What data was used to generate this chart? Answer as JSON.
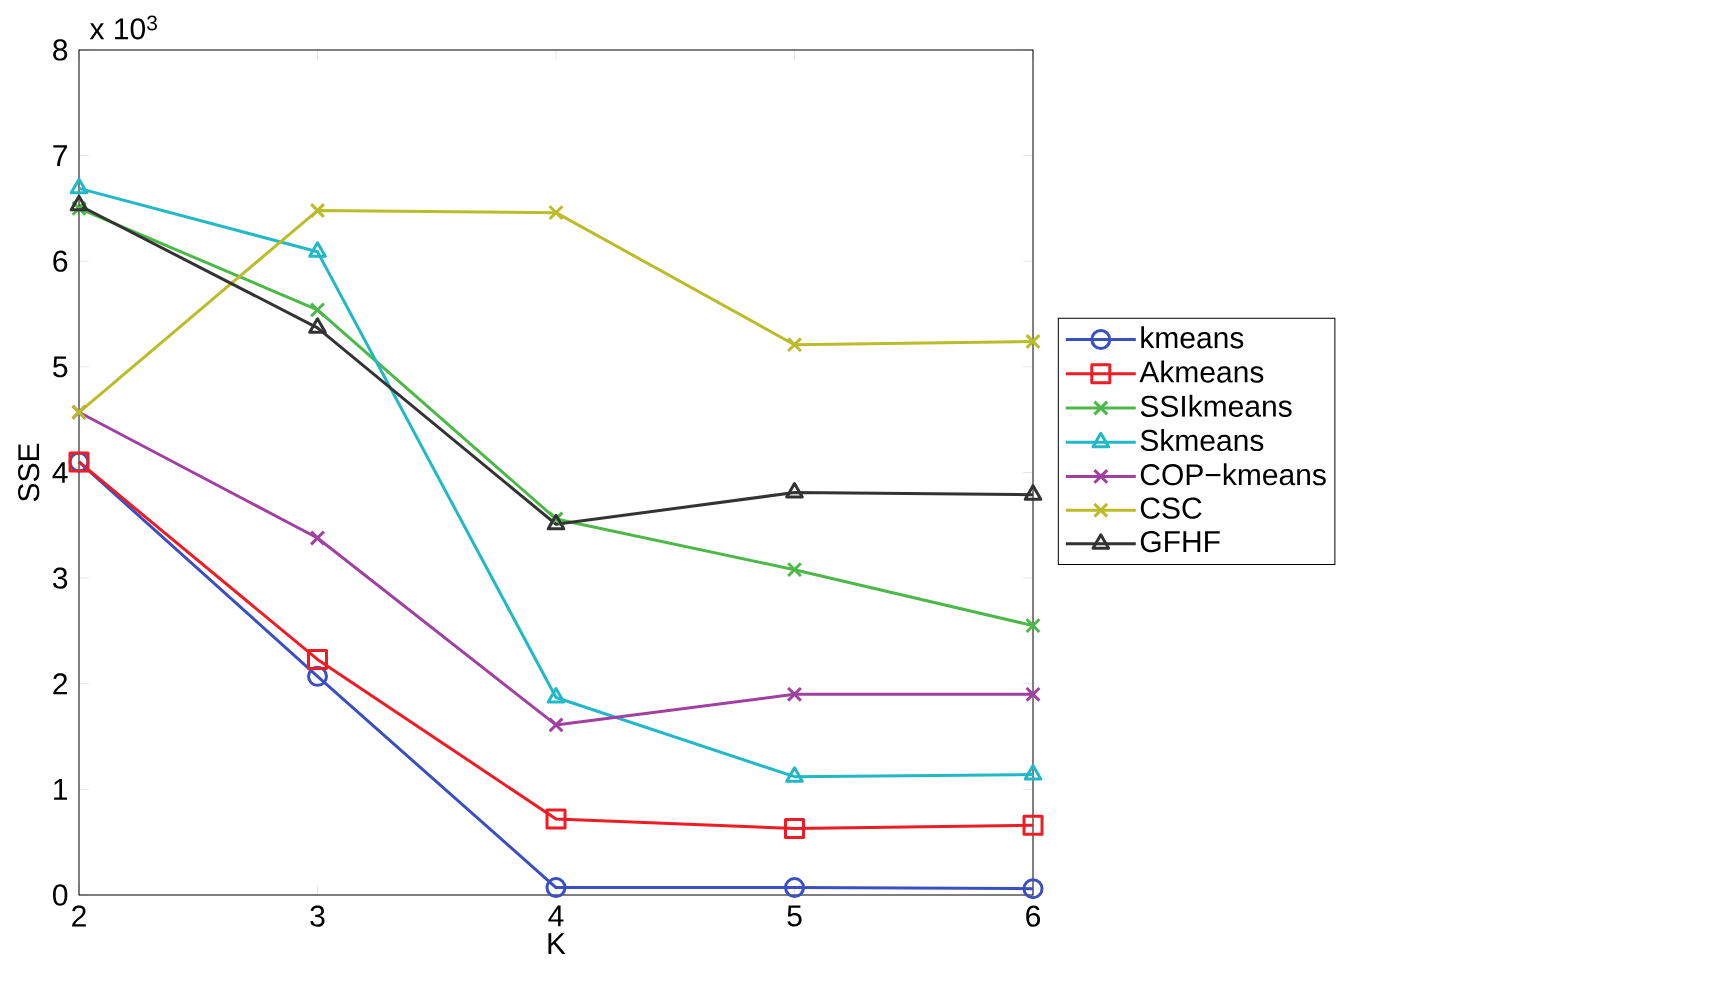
{
  "chart_data": {
    "type": "line",
    "xlabel": "K",
    "ylabel": "SSE",
    "annotations": [
      "x 10$^{3}$"
    ],
    "x": [
      2,
      3,
      4,
      5,
      6
    ],
    "xlim": [
      2,
      6
    ],
    "xticks": [
      2,
      3,
      4,
      5,
      6
    ],
    "ylim": [
      0,
      8
    ],
    "yticks": [
      0,
      1,
      2,
      3,
      4,
      5,
      6,
      7,
      8
    ],
    "legend": "right",
    "grid": false,
    "line_style": "solid",
    "series": [
      {
        "name": "kmeans",
        "color": "#3a4fc0",
        "marker": "circle",
        "values": [
          4.1,
          2.07,
          0.07,
          0.07,
          0.06
        ]
      },
      {
        "name": "Akmeans",
        "color": "#ee1c24",
        "marker": "square",
        "values": [
          4.1,
          2.23,
          0.72,
          0.63,
          0.66
        ]
      },
      {
        "name": "SSIkmeans",
        "color": "#4cb848",
        "marker": "cross",
        "values": [
          6.5,
          5.54,
          3.56,
          3.08,
          2.55
        ]
      },
      {
        "name": "Skmeans",
        "color": "#21b8c8",
        "marker": "triangle",
        "values": [
          6.69,
          6.09,
          1.87,
          1.12,
          1.14
        ]
      },
      {
        "name": "COP−kmeans",
        "color": "#a040a0",
        "marker": "cross",
        "values": [
          4.57,
          3.38,
          1.61,
          1.9,
          1.9
        ]
      },
      {
        "name": "CSC",
        "color": "#bcbc2a",
        "marker": "cross",
        "values": [
          4.57,
          6.48,
          6.46,
          5.21,
          5.24
        ]
      },
      {
        "name": "GFHF",
        "color": "#333333",
        "marker": "triangle",
        "values": [
          6.53,
          5.37,
          3.51,
          3.81,
          3.79
        ]
      }
    ]
  }
}
